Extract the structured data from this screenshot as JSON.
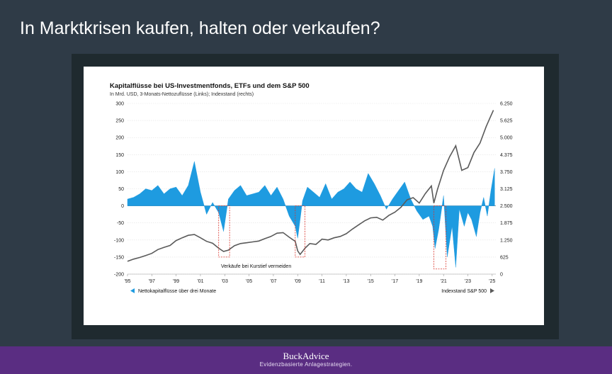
{
  "slide": {
    "title": "In Marktkrisen kaufen, halten oder verkaufen?",
    "brand": "BuckAdvice",
    "tagline": "Evidenzbasierte Anlagestrategien."
  },
  "colors": {
    "background": "#2f3b47",
    "flows": "#1e9be0",
    "index": "#5a5a5a",
    "highlight": "#d9342b",
    "footer": "#5a2d82"
  },
  "chart_data": {
    "type": "area",
    "title": "Kapitalflüsse bei US-Investmentfonds, ETFs und dem S&P 500",
    "subtitle": "In Mrd. USD, 3-Monats-Nettozuflüsse (Links); Indexstand (rechts)",
    "x_tick_labels": [
      "'95",
      "'97",
      "'99",
      "'01",
      "'03",
      "'05",
      "'07",
      "'09",
      "'11",
      "'13",
      "'15",
      "'17",
      "'19",
      "'21",
      "'23",
      "'25"
    ],
    "x_tick_years": [
      1995,
      1997,
      1999,
      2001,
      2003,
      2005,
      2007,
      2009,
      2011,
      2013,
      2015,
      2017,
      2019,
      2021,
      2023,
      2025
    ],
    "xlim": [
      1995,
      2025.3
    ],
    "y_left": {
      "ticks": [
        300,
        250,
        200,
        150,
        100,
        50,
        0,
        -50,
        -100,
        -150,
        -200
      ],
      "tick_labels": [
        "300",
        "250",
        "200",
        "150",
        "100",
        "50",
        "0",
        "-50",
        "-100",
        "-150",
        "-200"
      ],
      "ylim": [
        -200,
        300
      ]
    },
    "y_right": {
      "ticks": [
        6250,
        5625,
        5000,
        4375,
        3750,
        3125,
        2500,
        1875,
        1250,
        625,
        0
      ],
      "tick_labels": [
        "6.250",
        "5.625",
        "5.000",
        "4.375",
        "3.750",
        "3.125",
        "2.500",
        "1.875",
        "1.250",
        "625",
        "0"
      ],
      "ylim": [
        0,
        6250
      ]
    },
    "legend": {
      "left_label": "Nettokapitalflüsse über drei Monate",
      "right_label": "Indexstand S&P 500",
      "placement": "bottom"
    },
    "annotation": "Verkäufe bei Kurstief vermeiden",
    "highlight_periods": [
      {
        "x_start": 2002.5,
        "x_end": 2003.4,
        "y_low": -150,
        "y_high": 0
      },
      {
        "x_start": 2008.8,
        "x_end": 2009.6,
        "y_low": -150,
        "y_high": 0
      },
      {
        "x_start": 2020.2,
        "x_end": 2021.2,
        "y_low": -185,
        "y_high": 0
      }
    ],
    "series": [
      {
        "name": "Nettokapitalflüsse über drei Monate",
        "axis": "left",
        "x": [
          1995.0,
          1995.5,
          1996.0,
          1996.5,
          1997.0,
          1997.5,
          1998.0,
          1998.5,
          1999.0,
          1999.5,
          2000.0,
          2000.5,
          2001.0,
          2001.5,
          2002.0,
          2002.5,
          2002.9,
          2003.3,
          2003.8,
          2004.3,
          2004.8,
          2005.3,
          2005.8,
          2006.3,
          2006.8,
          2007.3,
          2007.8,
          2008.3,
          2008.8,
          2009.0,
          2009.4,
          2009.8,
          2010.3,
          2010.8,
          2011.3,
          2011.8,
          2012.3,
          2012.8,
          2013.3,
          2013.8,
          2014.3,
          2014.8,
          2015.3,
          2015.8,
          2016.3,
          2016.8,
          2017.3,
          2017.8,
          2018.3,
          2018.8,
          2019.3,
          2019.8,
          2020.1,
          2020.3,
          2020.6,
          2021.0,
          2021.3,
          2021.7,
          2022.0,
          2022.3,
          2022.7,
          2023.0,
          2023.3,
          2023.7,
          2024.0,
          2024.3,
          2024.6,
          2024.9,
          2025.2
        ],
        "values": [
          20,
          25,
          35,
          50,
          45,
          60,
          35,
          50,
          55,
          30,
          60,
          130,
          40,
          -25,
          10,
          -20,
          -75,
          20,
          45,
          60,
          30,
          35,
          40,
          60,
          30,
          55,
          20,
          -30,
          -60,
          -95,
          15,
          55,
          40,
          25,
          65,
          20,
          40,
          50,
          70,
          50,
          40,
          95,
          65,
          30,
          -10,
          20,
          45,
          70,
          20,
          -15,
          -40,
          -30,
          -60,
          -125,
          -70,
          30,
          -150,
          -60,
          -180,
          -10,
          -60,
          -20,
          -40,
          -90,
          -20,
          25,
          -30,
          45,
          110
        ]
      },
      {
        "name": "Indexstand S&P 500",
        "axis": "right",
        "x": [
          1995.0,
          1995.5,
          1996.0,
          1996.5,
          1997.0,
          1997.5,
          1998.0,
          1998.5,
          1999.0,
          1999.5,
          2000.0,
          2000.5,
          2001.0,
          2001.5,
          2002.0,
          2002.5,
          2002.9,
          2003.3,
          2003.8,
          2004.3,
          2004.8,
          2005.3,
          2005.8,
          2006.3,
          2006.8,
          2007.3,
          2007.8,
          2008.3,
          2008.8,
          2009.0,
          2009.2,
          2009.6,
          2010.0,
          2010.5,
          2011.0,
          2011.5,
          2012.0,
          2012.5,
          2013.0,
          2013.5,
          2014.0,
          2014.5,
          2015.0,
          2015.5,
          2016.0,
          2016.5,
          2017.0,
          2017.5,
          2018.0,
          2018.5,
          2019.0,
          2019.5,
          2020.0,
          2020.2,
          2020.5,
          2021.0,
          2021.5,
          2022.0,
          2022.5,
          2023.0,
          2023.5,
          2024.0,
          2024.5,
          2024.8,
          2025.1
        ],
        "values": [
          470,
          550,
          610,
          680,
          760,
          900,
          980,
          1050,
          1230,
          1330,
          1420,
          1450,
          1330,
          1200,
          1130,
          950,
          830,
          880,
          1040,
          1120,
          1150,
          1180,
          1210,
          1300,
          1380,
          1500,
          1520,
          1350,
          1200,
          850,
          720,
          950,
          1120,
          1090,
          1280,
          1250,
          1330,
          1380,
          1480,
          1650,
          1800,
          1950,
          2060,
          2080,
          1980,
          2150,
          2270,
          2450,
          2720,
          2800,
          2600,
          2950,
          3230,
          2600,
          3100,
          3800,
          4300,
          4700,
          3800,
          3900,
          4450,
          4800,
          5400,
          5700,
          6000
        ]
      }
    ]
  }
}
